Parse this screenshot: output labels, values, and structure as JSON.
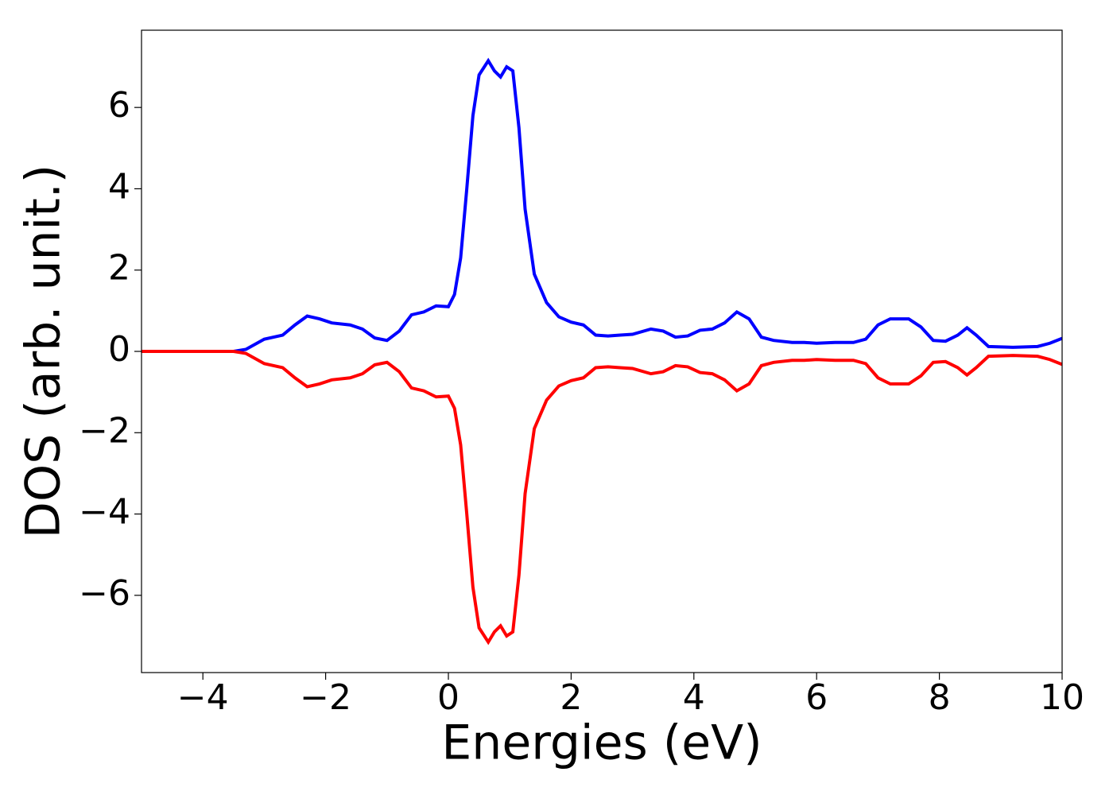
{
  "chart_data": {
    "type": "line",
    "xlabel": "Energies (eV)",
    "ylabel": "DOS (arb. unit.)",
    "x": [
      -5,
      -3.5,
      -3.3,
      -3.0,
      -2.7,
      -2.5,
      -2.3,
      -2.1,
      -1.9,
      -1.6,
      -1.4,
      -1.2,
      -1.0,
      -0.8,
      -0.6,
      -0.4,
      -0.2,
      0.0,
      0.1,
      0.2,
      0.3,
      0.4,
      0.5,
      0.65,
      0.75,
      0.85,
      0.95,
      1.05,
      1.15,
      1.25,
      1.4,
      1.6,
      1.8,
      2.0,
      2.2,
      2.4,
      2.6,
      2.8,
      3.0,
      3.3,
      3.5,
      3.7,
      3.9,
      4.1,
      4.3,
      4.5,
      4.7,
      4.9,
      5.1,
      5.3,
      5.6,
      5.8,
      6.0,
      6.3,
      6.6,
      6.8,
      7.0,
      7.2,
      7.5,
      7.7,
      7.9,
      8.1,
      8.3,
      8.45,
      8.6,
      8.8,
      9.2,
      9.6,
      9.8,
      10
    ],
    "series": [
      {
        "color": "#0000ff",
        "values": [
          0,
          0,
          0.05,
          0.3,
          0.4,
          0.65,
          0.87,
          0.8,
          0.7,
          0.65,
          0.55,
          0.33,
          0.27,
          0.5,
          0.9,
          0.97,
          1.12,
          1.1,
          1.4,
          2.3,
          4.0,
          5.8,
          6.8,
          7.15,
          6.9,
          6.75,
          7.0,
          6.9,
          5.5,
          3.5,
          1.9,
          1.2,
          0.85,
          0.72,
          0.65,
          0.4,
          0.38,
          0.4,
          0.42,
          0.55,
          0.5,
          0.35,
          0.38,
          0.52,
          0.55,
          0.7,
          0.97,
          0.8,
          0.35,
          0.27,
          0.22,
          0.22,
          0.2,
          0.22,
          0.22,
          0.3,
          0.65,
          0.8,
          0.8,
          0.6,
          0.27,
          0.25,
          0.4,
          0.58,
          0.4,
          0.12,
          0.1,
          0.12,
          0.2,
          0.32
        ]
      },
      {
        "color": "#ff0000",
        "values": [
          0,
          0,
          -0.05,
          -0.3,
          -0.4,
          -0.65,
          -0.87,
          -0.8,
          -0.7,
          -0.65,
          -0.55,
          -0.33,
          -0.27,
          -0.5,
          -0.9,
          -0.97,
          -1.12,
          -1.1,
          -1.4,
          -2.3,
          -4.0,
          -5.8,
          -6.8,
          -7.15,
          -6.9,
          -6.75,
          -7.0,
          -6.9,
          -5.5,
          -3.5,
          -1.9,
          -1.2,
          -0.85,
          -0.72,
          -0.65,
          -0.4,
          -0.38,
          -0.4,
          -0.42,
          -0.55,
          -0.5,
          -0.35,
          -0.38,
          -0.52,
          -0.55,
          -0.7,
          -0.97,
          -0.8,
          -0.35,
          -0.27,
          -0.22,
          -0.22,
          -0.2,
          -0.22,
          -0.22,
          -0.3,
          -0.65,
          -0.8,
          -0.8,
          -0.6,
          -0.27,
          -0.25,
          -0.4,
          -0.58,
          -0.4,
          -0.12,
          -0.1,
          -0.12,
          -0.2,
          -0.32
        ]
      }
    ],
    "xlim": [
      -5,
      10
    ],
    "xticks": [
      {
        "value": -4,
        "label": "−4"
      },
      {
        "value": -2,
        "label": "−2"
      },
      0,
      2,
      4,
      6,
      8,
      10
    ],
    "ylim": [
      -7.9,
      7.9
    ],
    "yticks": [
      {
        "value": -6,
        "label": "−6"
      },
      {
        "value": -4,
        "label": "−4"
      },
      {
        "value": -2,
        "label": "−2"
      },
      0,
      2,
      4,
      6
    ],
    "grid": false
  }
}
